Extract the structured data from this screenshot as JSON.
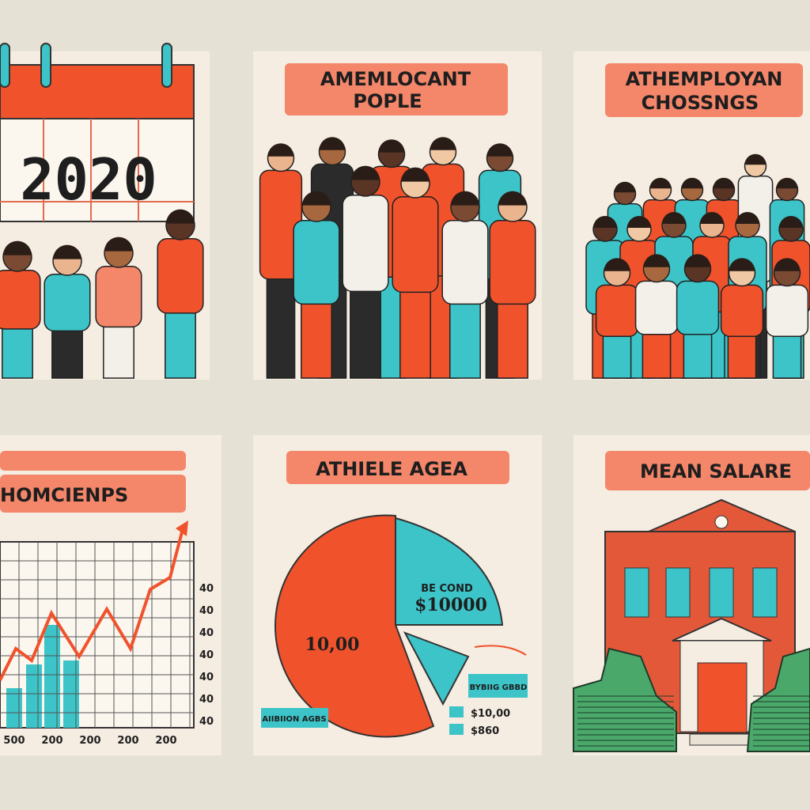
{
  "panels": [
    {
      "title": "2020"
    },
    {
      "title_lines": [
        "AMEMLOCANT",
        "POPLE"
      ]
    },
    {
      "title_lines": [
        "ATHEMPLOYAN",
        "CHOSSNGS"
      ]
    },
    {
      "title": "HOMCIENPS",
      "right_labels": [
        "40",
        "40",
        "40",
        "40",
        "40",
        "40",
        "40"
      ],
      "bottom_labels": [
        "500",
        "200",
        "200",
        "200",
        "200"
      ]
    },
    {
      "title": "ATHIELE AGEA",
      "labels": [
        "BE COND",
        "$10000",
        "10,00",
        "AIIBIION AGBS",
        "BYBIIG GBBD",
        "$10,00",
        "$860"
      ]
    },
    {
      "title": "MEAN SALARE"
    }
  ]
}
